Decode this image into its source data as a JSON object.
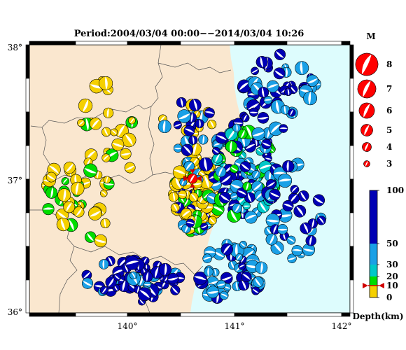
{
  "title": "Period:2004/03/04 00:00−−2014/03/04 10:26",
  "axes": {
    "lat_labels": [
      "38°",
      "37°",
      "36°"
    ],
    "lon_labels": [
      "140°",
      "141°",
      "142°"
    ]
  },
  "magnitude_legend": {
    "header": "M",
    "entries": [
      "8",
      "7",
      "6",
      "5",
      "4",
      "3"
    ]
  },
  "depth_legend": {
    "tick_labels": [
      "100",
      "50",
      "30",
      "20",
      "10",
      "0"
    ],
    "axis_label": "Depth(km)",
    "bands": [
      {
        "from": 0,
        "to": 10,
        "color": "#f5d000"
      },
      {
        "from": 10,
        "to": 20,
        "color": "#00dd00"
      },
      {
        "from": 20,
        "to": 30,
        "color": "#00c8c8"
      },
      {
        "from": 30,
        "to": 50,
        "color": "#1aa0e6"
      },
      {
        "from": 50,
        "to": 100,
        "color": "#0000b4"
      }
    ],
    "marker_depth": 10
  },
  "colors": {
    "land": "#fae7cf",
    "sea": "#ddfcfd",
    "mechanism_legend": "#ff0000",
    "border": "#000000"
  }
}
